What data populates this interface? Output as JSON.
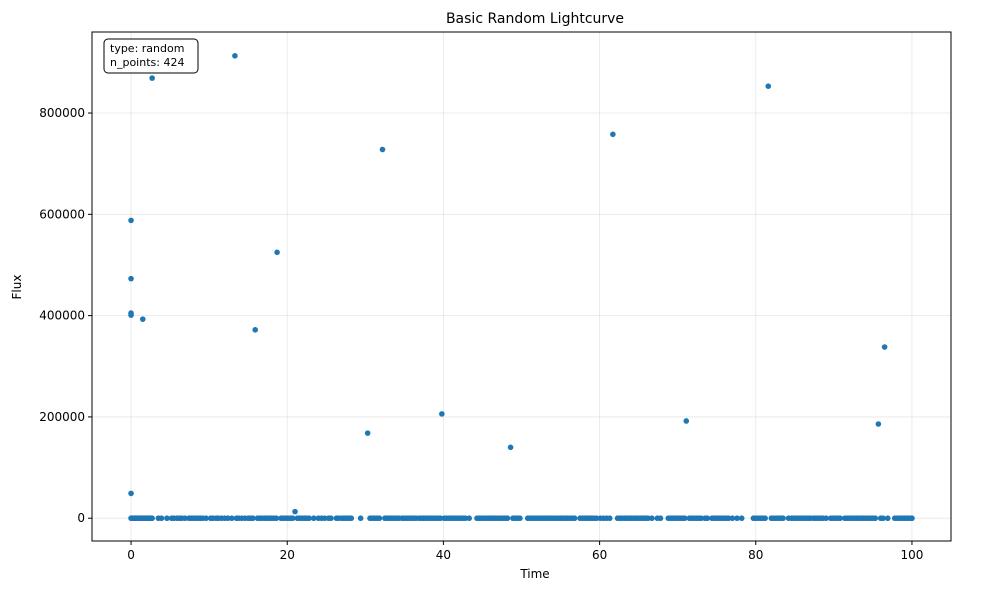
{
  "chart_data": {
    "type": "scatter",
    "title": "Basic Random Lightcurve",
    "xlabel": "Time",
    "ylabel": "Flux",
    "xlim": [
      -5,
      105
    ],
    "ylim": [
      -45000,
      960000
    ],
    "xticks": [
      0,
      20,
      40,
      60,
      80,
      100
    ],
    "xtick_labels": [
      "0",
      "20",
      "40",
      "60",
      "80",
      "100"
    ],
    "yticks": [
      0,
      200000,
      400000,
      600000,
      800000
    ],
    "ytick_labels": [
      "0",
      "200000",
      "400000",
      "600000",
      "800000"
    ],
    "grid": true,
    "point_color": "#1f77b4",
    "annotation": {
      "placement": "top-left",
      "lines": [
        "type: random",
        "n_points: 424"
      ]
    },
    "outliers": [
      {
        "x": 0.0,
        "y": 588000
      },
      {
        "x": 0.0,
        "y": 473000
      },
      {
        "x": 0.0,
        "y": 405000
      },
      {
        "x": 0.0,
        "y": 401000
      },
      {
        "x": 0.0,
        "y": 49000
      },
      {
        "x": 1.5,
        "y": 393000
      },
      {
        "x": 2.7,
        "y": 869000
      },
      {
        "x": 13.3,
        "y": 913000
      },
      {
        "x": 15.9,
        "y": 372000
      },
      {
        "x": 18.7,
        "y": 525000
      },
      {
        "x": 21.0,
        "y": 13000
      },
      {
        "x": 30.3,
        "y": 168000
      },
      {
        "x": 32.2,
        "y": 728000
      },
      {
        "x": 39.8,
        "y": 206000
      },
      {
        "x": 48.6,
        "y": 140000
      },
      {
        "x": 61.7,
        "y": 758000
      },
      {
        "x": 71.1,
        "y": 192000
      },
      {
        "x": 81.6,
        "y": 853000
      },
      {
        "x": 95.7,
        "y": 186000
      },
      {
        "x": 96.5,
        "y": 338000
      }
    ],
    "baseline": {
      "y": 0,
      "x": [
        0.0,
        0.1,
        0.2,
        0.3,
        0.4,
        0.5,
        0.6,
        0.7,
        0.8,
        0.9,
        1.0,
        1.1,
        1.2,
        1.3,
        1.4,
        1.5,
        1.6,
        1.7,
        1.8,
        1.9,
        2.0,
        2.1,
        2.2,
        2.3,
        2.4,
        2.5,
        2.6,
        2.7,
        3.5,
        3.9,
        4.6,
        5.2,
        5.5,
        5.9,
        6.2,
        6.5,
        6.9,
        7.4,
        7.7,
        8.0,
        8.3,
        8.6,
        8.9,
        9.2,
        9.6,
        10.2,
        10.5,
        10.9,
        11.2,
        11.6,
        12.0,
        12.4,
        12.9,
        13.5,
        13.8,
        14.2,
        14.6,
        15.0,
        15.3,
        15.6,
        16.2,
        16.5,
        16.8,
        17.1,
        17.4,
        17.7,
        18.0,
        18.3,
        18.6,
        19.2,
        19.5,
        19.8,
        20.1,
        20.4,
        20.7,
        21.3,
        21.6,
        21.9,
        22.2,
        22.5,
        22.8,
        23.4,
        24.0,
        24.4,
        24.8,
        25.3,
        25.6,
        26.3,
        26.6,
        27.0,
        27.3,
        27.6,
        27.9,
        28.2,
        29.4,
        30.6,
        30.9,
        31.2,
        31.5,
        31.8,
        32.5,
        32.8,
        33.1,
        33.4,
        33.7,
        34.0,
        34.3,
        34.7,
        35.0,
        35.3,
        35.6,
        35.9,
        36.2,
        36.5,
        36.9,
        37.2,
        37.5,
        37.8,
        38.1,
        38.4,
        38.7,
        39.0,
        39.3,
        39.6,
        40.1,
        40.4,
        40.7,
        41.0,
        41.3,
        41.6,
        41.9,
        42.2,
        42.5,
        42.8,
        43.3,
        44.3,
        44.6,
        44.9,
        45.2,
        45.5,
        45.8,
        46.1,
        46.4,
        46.7,
        47.0,
        47.3,
        47.6,
        47.9,
        48.2,
        48.9,
        49.2,
        49.5,
        49.8,
        50.8,
        51.1,
        51.4,
        51.7,
        52.0,
        52.3,
        52.6,
        52.9,
        53.2,
        53.5,
        53.8,
        54.1,
        54.4,
        54.7,
        55.0,
        55.3,
        55.6,
        55.9,
        56.2,
        56.5,
        56.8,
        57.5,
        57.8,
        58.1,
        58.4,
        58.7,
        59.0,
        59.3,
        59.6,
        60.1,
        60.5,
        60.9,
        61.3,
        62.3,
        62.6,
        62.9,
        63.2,
        63.5,
        63.8,
        64.1,
        64.4,
        64.7,
        65.0,
        65.3,
        65.6,
        65.9,
        66.2,
        66.7,
        67.4,
        67.8,
        68.8,
        69.1,
        69.4,
        69.7,
        70.0,
        70.3,
        70.6,
        70.9,
        71.5,
        71.8,
        72.1,
        72.4,
        72.7,
        73.0,
        73.5,
        73.8,
        74.4,
        74.7,
        75.0,
        75.3,
        75.6,
        75.9,
        76.2,
        76.5,
        77.0,
        77.6,
        78.2,
        79.7,
        80.0,
        80.3,
        80.6,
        80.9,
        81.2,
        82.0,
        82.3,
        82.6,
        82.9,
        83.2,
        83.5,
        84.2,
        84.6,
        84.9,
        85.2,
        85.5,
        85.8,
        86.1,
        86.4,
        86.7,
        87.0,
        87.4,
        87.7,
        88.0,
        88.3,
        88.6,
        89.0,
        89.6,
        89.9,
        90.2,
        90.5,
        90.8,
        91.4,
        91.7,
        92.0,
        92.3,
        92.6,
        92.9,
        93.2,
        93.5,
        93.8,
        94.1,
        94.4,
        94.7,
        95.0,
        95.3,
        96.0,
        96.3,
        96.9,
        97.8,
        98.1,
        98.4,
        98.7,
        99.0,
        99.3,
        99.6,
        99.9,
        100.0
      ]
    }
  }
}
